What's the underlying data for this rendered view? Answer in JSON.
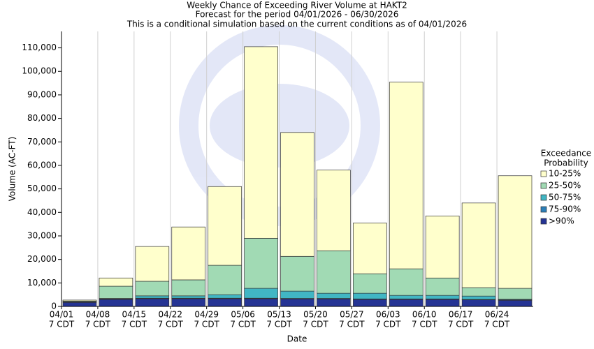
{
  "chart_data": {
    "type": "stacked_bar",
    "title": "Weekly Chance of Exceeding River Volume at HAKT2",
    "subtitle": "Forecast for the period 04/01/2026 - 06/30/2026",
    "subtitle2": "This is a conditional simulation based on the current conditions as of 04/01/2026",
    "y_label": "Volume (AC-FT)",
    "x_label": "Date",
    "categories": [
      "04/01",
      "04/08",
      "04/15",
      "04/22",
      "04/29",
      "05/06",
      "05/13",
      "05/20",
      "05/27",
      "06/03",
      "06/10",
      "06/17",
      "06/24"
    ],
    "category_sublabel": "7 CDT",
    "legend_title": [
      "Exceedance",
      "Probability"
    ],
    "series": [
      {
        "name": ">90%",
        "color": "#253494",
        "values": [
          1700,
          3000,
          3300,
          3300,
          3300,
          3300,
          3200,
          3200,
          3000,
          3000,
          3000,
          2800,
          2600
        ]
      },
      {
        "name": "75-90%",
        "color": "#2c7fb8",
        "values": [
          200,
          200,
          200,
          200,
          200,
          200,
          200,
          200,
          200,
          200,
          200,
          200,
          200
        ]
      },
      {
        "name": "50-75%",
        "color": "#41b6c4",
        "values": [
          100,
          200,
          1000,
          1000,
          1500,
          4200,
          3100,
          2200,
          2400,
          1500,
          1500,
          1400,
          300
        ]
      },
      {
        "name": "25-50%",
        "color": "#a1dab4",
        "values": [
          300,
          5200,
          6200,
          6800,
          12500,
          21300,
          14800,
          18100,
          8300,
          11300,
          7400,
          3600,
          4600
        ]
      },
      {
        "name": "10-25%",
        "color": "#ffffcc",
        "values": [
          400,
          3500,
          14800,
          22500,
          33500,
          81500,
          52700,
          34300,
          21600,
          79400,
          26400,
          36000,
          47900
        ]
      }
    ],
    "ylim": [
      0,
      117000
    ],
    "yticks": [
      0,
      {
        "value": 10000,
        "label": "10,000"
      },
      {
        "value": 20000,
        "label": "20,000"
      },
      {
        "value": 30000,
        "label": "30,000"
      },
      {
        "value": 40000,
        "label": "40,000"
      },
      {
        "value": 50000,
        "label": "50,000"
      },
      {
        "value": 60000,
        "label": "60,000"
      },
      {
        "value": 70000,
        "label": "70,000"
      },
      {
        "value": 80000,
        "label": "80,000"
      },
      {
        "value": 90000,
        "label": "90,000"
      },
      {
        "value": 100000,
        "label": "100,000"
      },
      {
        "value": 110000,
        "label": "110,000"
      }
    ],
    "grid": "x"
  }
}
